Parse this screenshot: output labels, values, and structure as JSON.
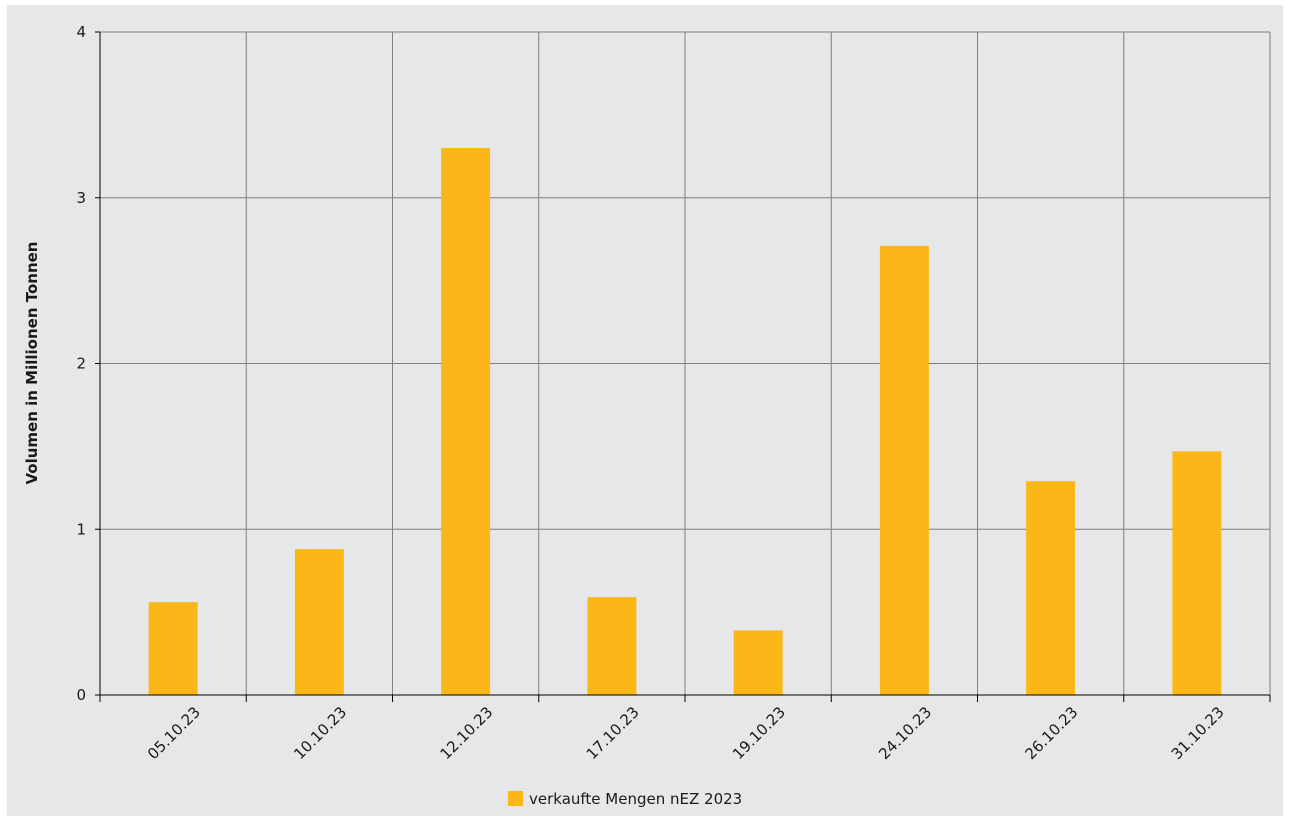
{
  "chart_data": {
    "type": "bar",
    "categories": [
      "05.10.23",
      "10.10.23",
      "12.10.23",
      "17.10.23",
      "19.10.23",
      "24.10.23",
      "26.10.23",
      "31.10.23"
    ],
    "series": [
      {
        "name": "verkaufte Mengen nEZ 2023",
        "values": [
          0.56,
          0.88,
          3.3,
          0.59,
          0.39,
          2.71,
          1.29,
          1.47
        ],
        "color": "#fbb718"
      }
    ],
    "ylabel": "Volumen in Millionen Tonnen",
    "xlabel": "",
    "ylim": [
      0,
      4
    ],
    "yticks": [
      0,
      1,
      2,
      3,
      4
    ],
    "grid": true,
    "legend_position": "bottom",
    "colors": {
      "background": "#e6e7e8",
      "grid": "#7f7f7f",
      "bar": "#fbb718"
    }
  }
}
